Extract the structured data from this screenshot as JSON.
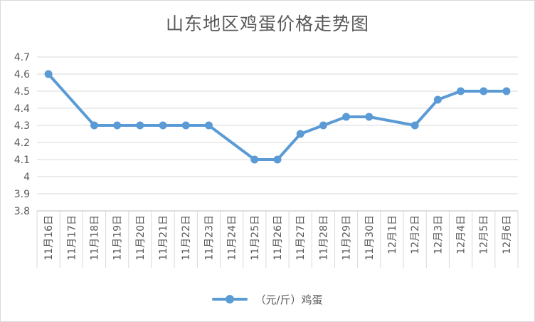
{
  "chart_data": {
    "type": "line",
    "title": "山东地区鸡蛋价格走势图",
    "categories": [
      "11月16日",
      "11月17日",
      "11月18日",
      "11月19日",
      "11月20日",
      "11月21日",
      "11月22日",
      "11月23日",
      "11月24日",
      "11月25日",
      "11月26日",
      "11月27日",
      "11月28日",
      "11月29日",
      "11月30日",
      "12月1日",
      "12月2日",
      "12月3日",
      "12月4日",
      "12月5日",
      "12月6日"
    ],
    "series": [
      {
        "name": "（元/斤）鸡蛋",
        "color": "#5b9bd5",
        "values": [
          4.6,
          null,
          4.3,
          4.3,
          4.3,
          4.3,
          4.3,
          4.3,
          null,
          4.1,
          4.1,
          4.25,
          4.3,
          4.35,
          4.35,
          null,
          4.3,
          4.45,
          4.5,
          4.5,
          4.5
        ]
      }
    ],
    "yticks": [
      "3.8",
      "3.9",
      "4",
      "4.1",
      "4.2",
      "4.3",
      "4.4",
      "4.5",
      "4.6",
      "4.7"
    ],
    "ylim": [
      3.8,
      4.7
    ],
    "xlabel": "",
    "ylabel": "",
    "grid": true,
    "legend_position": "bottom"
  }
}
